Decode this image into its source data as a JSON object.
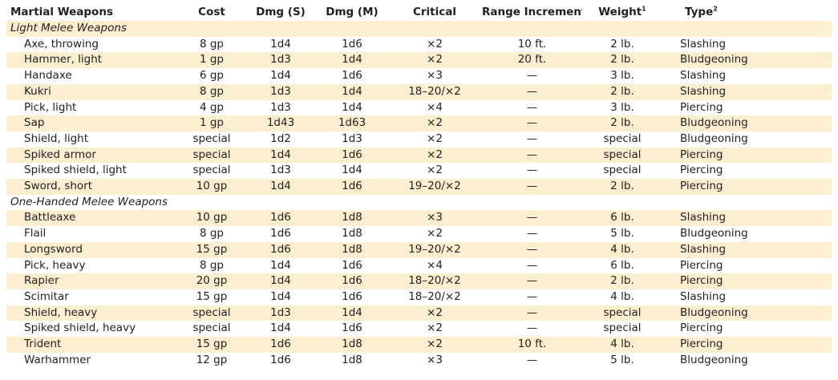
{
  "headers": {
    "name": "Martial Weapons",
    "cost": "Cost",
    "dmg_s": "Dmg (S)",
    "dmg_m": "Dmg (M)",
    "critical": "Critical",
    "range": "Range Increment",
    "weight": "Weight",
    "weight_note": "1",
    "type": "Type",
    "type_note": "2"
  },
  "sections": [
    {
      "title": "Light Melee Weapons",
      "rows": [
        {
          "name": "Axe, throwing",
          "cost": "8 gp",
          "dmg_s": "1d4",
          "dmg_m": "1d6",
          "critical": "×2",
          "range": "10 ft.",
          "weight": "2 lb.",
          "type": "Slashing"
        },
        {
          "name": "Hammer, light",
          "cost": "1 gp",
          "dmg_s": "1d3",
          "dmg_m": "1d4",
          "critical": "×2",
          "range": "20 ft.",
          "weight": "2 lb.",
          "type": "Bludgeoning"
        },
        {
          "name": "Handaxe",
          "cost": "6 gp",
          "dmg_s": "1d4",
          "dmg_m": "1d6",
          "critical": "×3",
          "range": "—",
          "weight": "3 lb.",
          "type": "Slashing"
        },
        {
          "name": "Kukri",
          "cost": "8 gp",
          "dmg_s": "1d3",
          "dmg_m": "1d4",
          "critical": "18–20/×2",
          "range": "—",
          "weight": "2 lb.",
          "type": "Slashing"
        },
        {
          "name": "Pick, light",
          "cost": "4 gp",
          "dmg_s": "1d3",
          "dmg_m": "1d4",
          "critical": "×4",
          "range": "—",
          "weight": "3 lb.",
          "type": "Piercing"
        },
        {
          "name": "Sap",
          "cost": "1 gp",
          "dmg_s": "1d43",
          "dmg_m": "1d63",
          "critical": "×2",
          "range": "—",
          "weight": "2 lb.",
          "type": "Bludgeoning"
        },
        {
          "name": "Shield, light",
          "cost": "special",
          "dmg_s": "1d2",
          "dmg_m": "1d3",
          "critical": "×2",
          "range": "—",
          "weight": "special",
          "type": "Bludgeoning"
        },
        {
          "name": "Spiked armor",
          "cost": "special",
          "dmg_s": "1d4",
          "dmg_m": "1d6",
          "critical": "×2",
          "range": "—",
          "weight": "special",
          "type": "Piercing"
        },
        {
          "name": "Spiked shield, light",
          "cost": "special",
          "dmg_s": "1d3",
          "dmg_m": "1d4",
          "critical": "×2",
          "range": "—",
          "weight": "special",
          "type": "Piercing"
        },
        {
          "name": "Sword, short",
          "cost": "10 gp",
          "dmg_s": "1d4",
          "dmg_m": "1d6",
          "critical": "19–20/×2",
          "range": "—",
          "weight": "2 lb.",
          "type": "Piercing"
        }
      ]
    },
    {
      "title": "One-Handed Melee Weapons",
      "rows": [
        {
          "name": "Battleaxe",
          "cost": "10 gp",
          "dmg_s": "1d6",
          "dmg_m": "1d8",
          "critical": "×3",
          "range": "—",
          "weight": "6 lb.",
          "type": "Slashing"
        },
        {
          "name": "Flail",
          "cost": "8 gp",
          "dmg_s": "1d6",
          "dmg_m": "1d8",
          "critical": "×2",
          "range": "—",
          "weight": "5 lb.",
          "type": "Bludgeoning"
        },
        {
          "name": "Longsword",
          "cost": "15 gp",
          "dmg_s": "1d6",
          "dmg_m": "1d8",
          "critical": "19–20/×2",
          "range": "—",
          "weight": "4 lb.",
          "type": "Slashing"
        },
        {
          "name": "Pick, heavy",
          "cost": "8 gp",
          "dmg_s": "1d4",
          "dmg_m": "1d6",
          "critical": "×4",
          "range": "—",
          "weight": "6 lb.",
          "type": "Piercing"
        },
        {
          "name": "Rapier",
          "cost": "20 gp",
          "dmg_s": "1d4",
          "dmg_m": "1d6",
          "critical": "18–20/×2",
          "range": "—",
          "weight": "2 lb.",
          "type": "Piercing"
        },
        {
          "name": "Scimitar",
          "cost": "15 gp",
          "dmg_s": "1d4",
          "dmg_m": "1d6",
          "critical": "18–20/×2",
          "range": "—",
          "weight": "4 lb.",
          "type": "Slashing"
        },
        {
          "name": "Shield, heavy",
          "cost": "special",
          "dmg_s": "1d3",
          "dmg_m": "1d4",
          "critical": "×2",
          "range": "—",
          "weight": "special",
          "type": "Bludgeoning"
        },
        {
          "name": "Spiked shield, heavy",
          "cost": "special",
          "dmg_s": "1d4",
          "dmg_m": "1d6",
          "critical": "×2",
          "range": "—",
          "weight": "special",
          "type": "Piercing"
        },
        {
          "name": "Trident",
          "cost": "15 gp",
          "dmg_s": "1d6",
          "dmg_m": "1d8",
          "critical": "×2",
          "range": "10 ft.",
          "weight": "4 lb.",
          "type": "Piercing"
        },
        {
          "name": "Warhammer",
          "cost": "12 gp",
          "dmg_s": "1d6",
          "dmg_m": "1d8",
          "critical": "×3",
          "range": "—",
          "weight": "5 lb.",
          "type": "Bludgeoning"
        }
      ]
    }
  ],
  "colors": {
    "shade": "#fbefd0",
    "text": "#231f20"
  }
}
